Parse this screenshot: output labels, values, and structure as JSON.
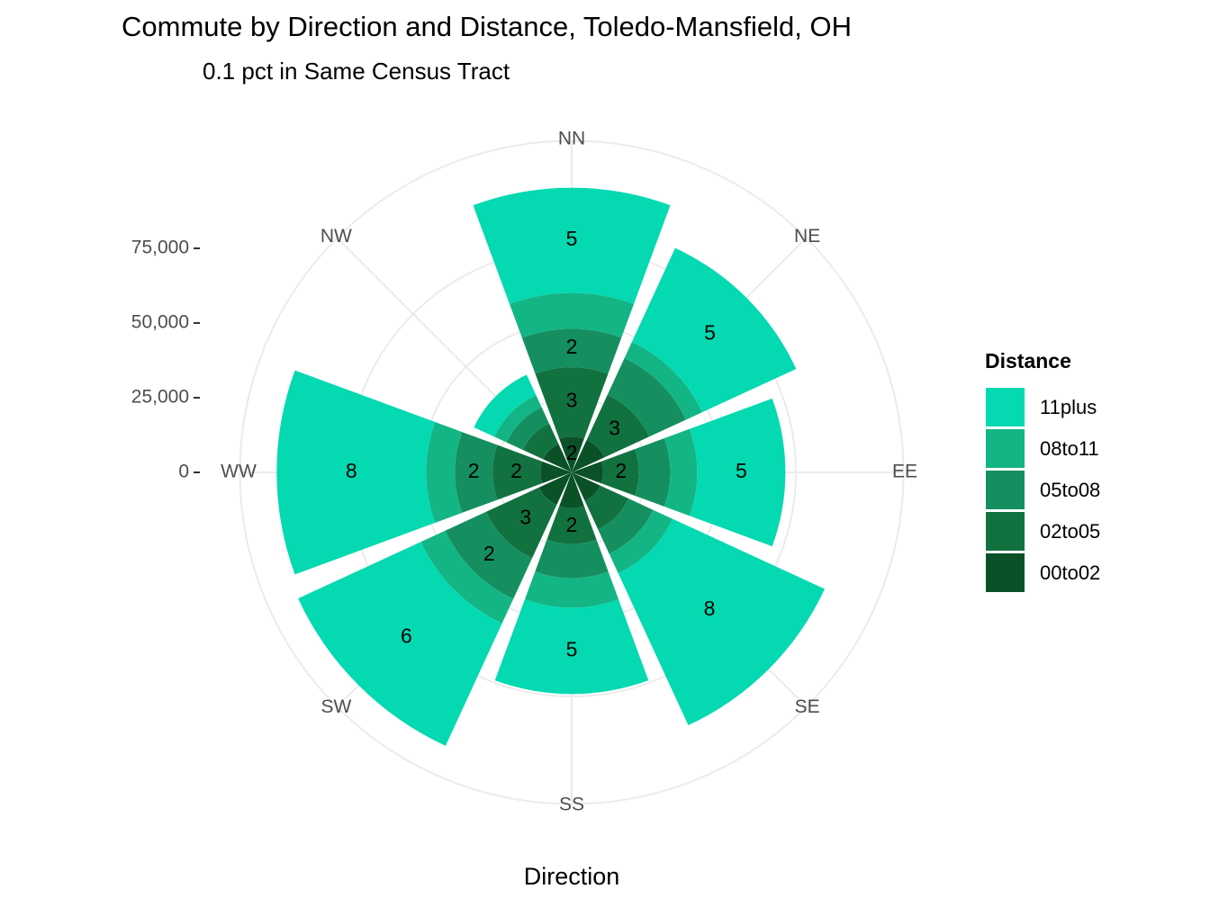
{
  "chart_data": {
    "type": "rose",
    "title": "Commute by Direction and Distance, Toledo-Mansfield, OH",
    "subtitle": "0.1 pct in Same Census Tract",
    "x_label": "Direction",
    "legend_title": "Distance",
    "categories": [
      "NN",
      "NE",
      "EE",
      "SE",
      "SS",
      "SW",
      "WW",
      "NW"
    ],
    "ylim": [
      0,
      111000
    ],
    "yticks": [
      0,
      {
        "value": 25000,
        "label": "25,000"
      },
      {
        "value": 50000,
        "label": "50,000"
      },
      {
        "value": 75000,
        "label": "75,000"
      }
    ],
    "grid": true,
    "series": [
      {
        "name": "00to02",
        "color": "#0a5128",
        "values": [
          12000,
          12000,
          10500,
          10500,
          12000,
          12000,
          10500,
          10500
        ],
        "value_labels": [
          "2",
          null,
          null,
          null,
          null,
          null,
          null,
          null
        ]
      },
      {
        "name": "02to05",
        "color": "#117240",
        "values": [
          23200,
          16600,
          12000,
          10500,
          12000,
          19600,
          16000,
          7500
        ],
        "value_labels": [
          "3",
          "3",
          "2",
          null,
          "2",
          "3",
          "2",
          null
        ]
      },
      {
        "name": "05to08",
        "color": "#158f5f",
        "values": [
          12900,
          13500,
          10500,
          9000,
          11400,
          15000,
          12600,
          6000
        ],
        "value_labels": [
          "2",
          null,
          null,
          null,
          null,
          "2",
          "2",
          null
        ]
      },
      {
        "name": "08to11",
        "color": "#13b585",
        "values": [
          12000,
          6000,
          9000,
          7200,
          9900,
          9000,
          9600,
          4500
        ],
        "value_labels": [
          null,
          null,
          null,
          null,
          null,
          null,
          null,
          null
        ]
      },
      {
        "name": "11plus",
        "color": "#04d9b1",
        "values": [
          35200,
          34600,
          29500,
          56000,
          28900,
          45200,
          50000,
          7500
        ],
        "value_labels": [
          "5",
          "5",
          "5",
          "8",
          "5",
          "6",
          "8",
          null
        ]
      }
    ]
  }
}
